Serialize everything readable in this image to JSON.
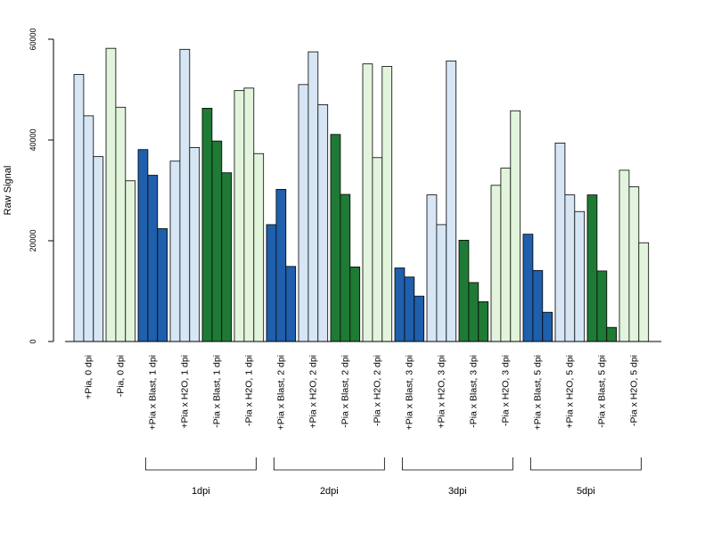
{
  "chart_data": {
    "type": "bar",
    "ylabel": "Raw Signal",
    "ylim": [
      0,
      60000
    ],
    "yticks": [
      0,
      20000,
      40000,
      60000
    ],
    "grid": false,
    "categories": [
      "+Pia, 0 dpi",
      "-Pia, 0 dpi",
      "+Pia x Blast, 1 dpi",
      "+Pia x H2O, 1 dpi",
      "-Pia x Blast, 1 dpi",
      "-Pia x H2O, 1 dpi",
      "+Pia x Blast, 2 dpi",
      "+Pia x H2O, 2 dpi",
      "-Pia x Blast, 2 dpi",
      "-Pia x H2O, 2 dpi",
      "+Pia x Blast, 3 dpi",
      "+Pia x H2O, 3 dpi",
      "-Pia x Blast, 3 dpi",
      "-Pia x H2O, 3 dpi",
      "+Pia x Blast, 5 dpi",
      "+Pia x H2O, 5 dpi",
      "-Pia x Blast, 5 dpi",
      "-Pia x H2O, 5 dpi"
    ],
    "values": [
      [
        53000,
        44800,
        36700
      ],
      [
        58200,
        46500,
        31900
      ],
      [
        38100,
        33000,
        22400
      ],
      [
        35800,
        58000,
        38500
      ],
      [
        46300,
        39800,
        33500
      ],
      [
        49800,
        50300,
        37300
      ],
      [
        23200,
        30200,
        14900
      ],
      [
        51000,
        57500,
        47000
      ],
      [
        41100,
        29200,
        14800
      ],
      [
        55100,
        36500,
        54600
      ],
      [
        14600,
        12800,
        9000
      ],
      [
        29100,
        23200,
        55700
      ],
      [
        20100,
        11700,
        7900
      ],
      [
        31000,
        34400,
        45800
      ],
      [
        21300,
        14100,
        5800
      ],
      [
        39400,
        29100,
        25800
      ],
      [
        29100,
        14000,
        2800
      ],
      [
        34000,
        30700,
        19600
      ]
    ],
    "colors": [
      "#d6e6f5",
      "#e2f5dc",
      "#1f5fab",
      "#d6e6f5",
      "#1f7a35",
      "#e2f5dc",
      "#1f5fab",
      "#d6e6f5",
      "#1f7a35",
      "#e2f5dc",
      "#1f5fab",
      "#d6e6f5",
      "#1f7a35",
      "#e2f5dc",
      "#1f5fab",
      "#d6e6f5",
      "#1f7a35",
      "#e2f5dc"
    ],
    "groups": [
      {
        "label": "1dpi",
        "from": 2,
        "to": 5
      },
      {
        "label": "2dpi",
        "from": 6,
        "to": 9
      },
      {
        "label": "3dpi",
        "from": 10,
        "to": 13
      },
      {
        "label": "5dpi",
        "from": 14,
        "to": 17
      }
    ]
  }
}
